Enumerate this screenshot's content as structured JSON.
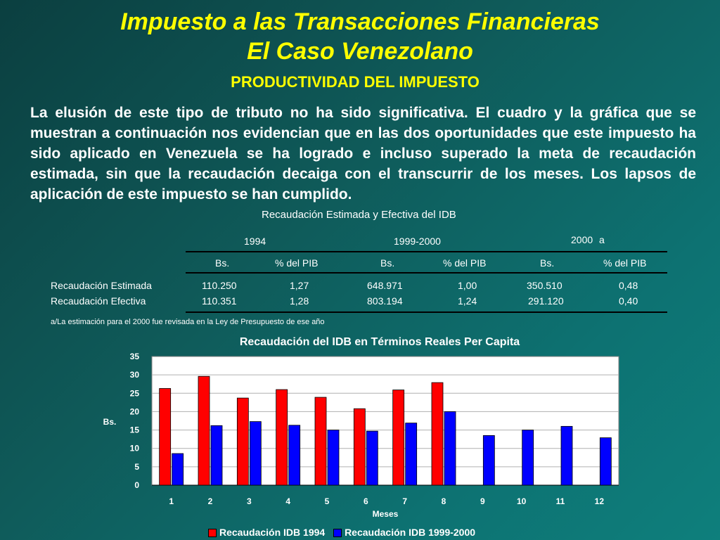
{
  "header": {
    "title_line1": "Impuesto a las Transacciones Financieras",
    "title_line2": "El Caso Venezolano",
    "subtitle": "PRODUCTIVIDAD DEL IMPUESTO"
  },
  "body_text": "La elusión de este tipo de tributo no ha sido significativa. El cuadro y la gráfica que se muestran a continuación nos evidencian que en las dos oportunidades que este impuesto ha sido aplicado en Venezuela se ha logrado e incluso superado la meta de recaudación estimada, sin que la recaudación decaiga con el transcurrir de los meses. Los lapsos de aplicación de este impuesto se han cumplido.",
  "table": {
    "title": "Recaudación Estimada y Efectiva del IDB",
    "periods": [
      "1994",
      "1999-2000",
      "2000"
    ],
    "period_note": "a",
    "columns": [
      "Bs.",
      "% del PIB",
      "Bs.",
      "% del PIB",
      "Bs.",
      "% del PIB"
    ],
    "rows": [
      {
        "label": "Recaudación Estimada",
        "values": [
          "110.250",
          "1,27",
          "648.971",
          "1,00",
          "350.510",
          "0,48"
        ]
      },
      {
        "label": "Recaudación Efectiva",
        "values": [
          "110.351",
          "1,28",
          "803.194",
          "1,24",
          "291.120",
          "0,40"
        ]
      }
    ],
    "footnote": "a/La estimación para el 2000 fue revisada en la Ley de Presupuesto de ese año"
  },
  "chart_data": {
    "type": "bar",
    "title": "Recaudación del IDB en Términos Reales Per Capita",
    "xlabel": "Meses",
    "ylabel": "Bs.",
    "ylim": [
      0,
      35
    ],
    "yticks": [
      "0",
      "5",
      "10",
      "15",
      "20",
      "25",
      "30",
      "35"
    ],
    "categories": [
      "1",
      "2",
      "3",
      "4",
      "5",
      "6",
      "7",
      "8",
      "9",
      "10",
      "11",
      "12"
    ],
    "grid": true,
    "legend": "bottom",
    "series": [
      {
        "name": "Recaudación IDB 1994",
        "color": "#ff0000",
        "values": [
          26.3,
          29.6,
          23.7,
          26.0,
          23.9,
          20.8,
          25.9,
          27.9,
          null,
          null,
          null,
          null
        ]
      },
      {
        "name": "Recaudación IDB 1999-2000",
        "color": "#0000ff",
        "values": [
          8.6,
          16.2,
          17.3,
          16.3,
          15.0,
          14.7,
          16.9,
          20.0,
          13.5,
          15.0,
          16.0,
          12.9
        ]
      }
    ]
  }
}
